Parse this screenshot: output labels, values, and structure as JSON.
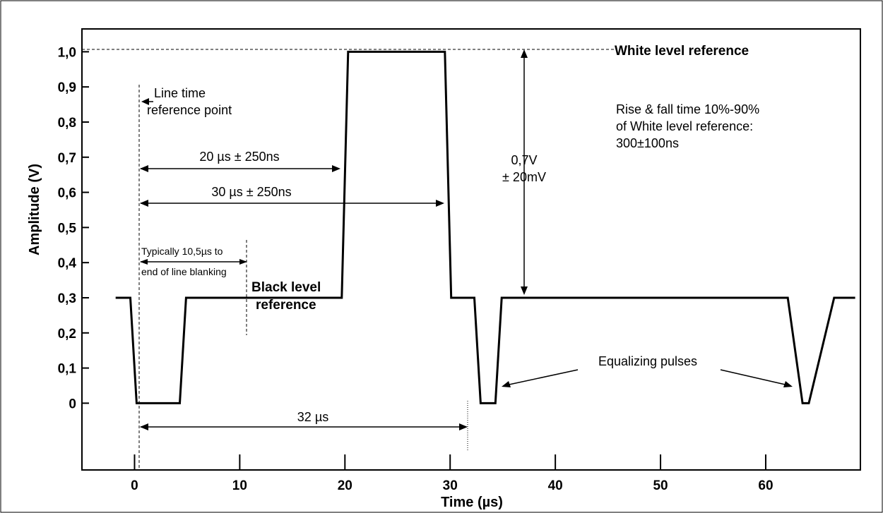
{
  "chart_data": {
    "type": "line",
    "title": "",
    "xlabel": "Time (µs)",
    "ylabel": "Amplitude (V)",
    "xlim": [
      -5,
      69
    ],
    "ylim": [
      -0.19,
      1.065
    ],
    "x_ticks": [
      0,
      10,
      20,
      30,
      40,
      50,
      60
    ],
    "x_tick_labels": [
      "0",
      "10",
      "20",
      "30",
      "40",
      "50",
      "60"
    ],
    "y_ticks": [
      0,
      0.1,
      0.2,
      0.3,
      0.4,
      0.5,
      0.6,
      0.7,
      0.8,
      0.9,
      1.0
    ],
    "y_tick_labels": [
      "0",
      "0,1",
      "0,2",
      "0,3",
      "0,4",
      "0,5",
      "0,6",
      "0,7",
      "0,8",
      "0,9",
      "1,0"
    ],
    "grid": false,
    "series": [
      {
        "x": [
          -1.8,
          -0.4,
          0.2,
          4.3,
          4.9,
          19.1,
          19.7,
          20.3,
          29.5,
          30.1,
          30.7,
          32.3,
          32.9,
          34.3,
          34.9,
          61.5,
          62.1,
          63.5,
          64.1,
          66.5,
          67.1,
          68.5
        ],
        "y": [
          0.3,
          0.3,
          0.0,
          0.0,
          0.3,
          0.3,
          0.3,
          1.0,
          1.0,
          0.3,
          0.3,
          0.3,
          0.0,
          0.0,
          0.3,
          0.3,
          0.3,
          0.0,
          0.0,
          0.3,
          0.3,
          0.3
        ]
      }
    ],
    "annotations": {
      "white_level": "White level reference",
      "black_level_1": "Black level",
      "black_level_2": "reference",
      "line_time_1": "Line time",
      "line_time_2": "reference point",
      "rise_1": "Rise & fall time 10%-90%",
      "rise_2": "of White level reference:",
      "rise_3": "300±100ns",
      "amp_1": "0,7V",
      "amp_2": "± 20mV",
      "d20": "20 µs ± 250ns",
      "d30": "30 µs ± 250ns",
      "typ_1": "Typically 10,5µs to",
      "typ_2": "end of line blanking",
      "d32": "32 µs",
      "equalizing": "Equalizing pulses"
    }
  }
}
